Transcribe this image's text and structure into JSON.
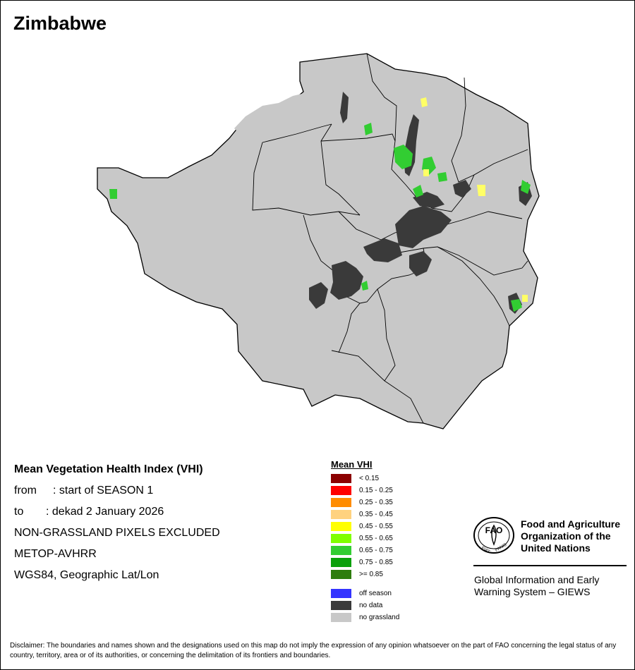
{
  "map": {
    "title": "Zimbabwe",
    "region_fill": "#c8c8c8",
    "boundary_color": "#000000"
  },
  "info": {
    "heading": "Mean Vegetation Health Index (VHI)",
    "from_label": "from",
    "from_value": ": start of SEASON 1",
    "to_label": "to",
    "to_value": ": dekad 2 January 2026",
    "note": "NON-GRASSLAND PIXELS EXCLUDED",
    "sensor": "METOP-AVHRR",
    "projection": "WGS84, Geographic Lat/Lon"
  },
  "legend": {
    "title": "Mean VHI",
    "classes": [
      {
        "label": "< 0.15",
        "color": "#8b0000"
      },
      {
        "label": "0.15 - 0.25",
        "color": "#ff0000"
      },
      {
        "label": "0.25 - 0.35",
        "color": "#ff8c00"
      },
      {
        "label": "0.35 - 0.45",
        "color": "#ffd27f"
      },
      {
        "label": "0.45 - 0.55",
        "color": "#ffff00"
      },
      {
        "label": "0.55 - 0.65",
        "color": "#7fff00"
      },
      {
        "label": "0.65 - 0.75",
        "color": "#32cd32"
      },
      {
        "label": "0.75 - 0.85",
        "color": "#0aa00a"
      },
      {
        "label": ">= 0.85",
        "color": "#2e7d0e"
      }
    ],
    "extras": [
      {
        "label": "off season",
        "color": "#3333ff"
      },
      {
        "label": "no data",
        "color": "#3a3a3a"
      },
      {
        "label": "no grassland",
        "color": "#c8c8c8"
      }
    ]
  },
  "org": {
    "emblem_text": "FAO",
    "emblem_motto_left": "FIAT",
    "emblem_motto_right": "PANIS",
    "name_line1": "Food and Agriculture",
    "name_line2": "Organization of the",
    "name_line3": "United Nations",
    "giews_line1": "Global Information and Early",
    "giews_line2": "Warning System – GIEWS"
  },
  "disclaimer": "Disclaimer: The boundaries and names shown and the designations used on this map do not imply the expression of any opinion whatsoever on the part of FAO concerning the legal status of any country, territory, area or of its authorities, or concerning the delimitation of its frontiers and boundaries."
}
